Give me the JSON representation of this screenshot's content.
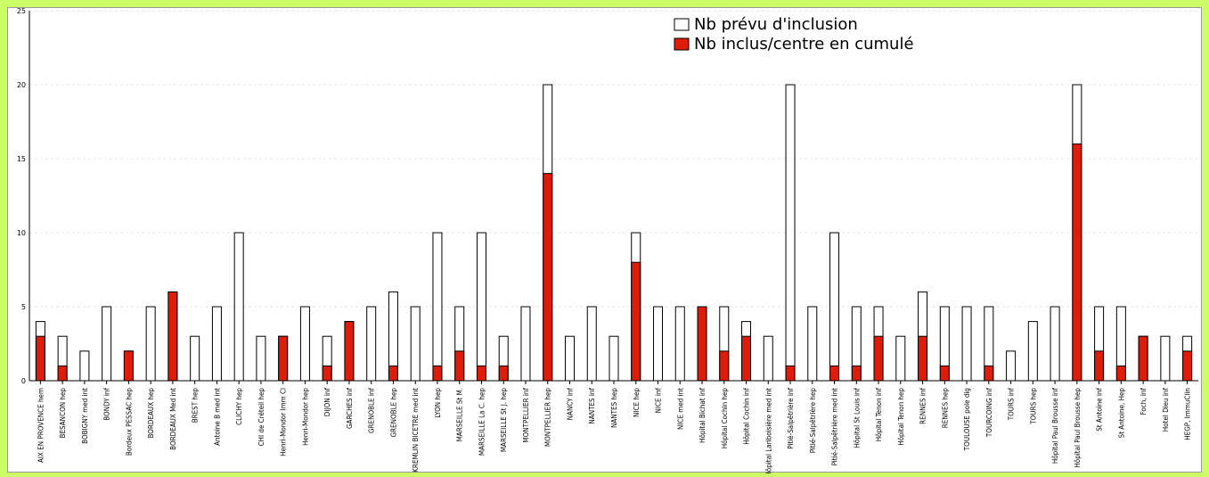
{
  "chart_data": {
    "type": "bar",
    "ylim": [
      0,
      25
    ],
    "yticks": [
      0,
      5,
      10,
      15,
      20,
      25
    ],
    "grid": true,
    "legend_position": "top-right",
    "categories": [
      "AIX EN PROVENCE hem",
      "BESANCON hep",
      "BOBIGNY med int",
      "BONDY inf",
      "Bordeux PESSAC hep",
      "BORDEAUX hep",
      "BORDEAUX Med int",
      "BREST hep",
      "Antoine B med int",
      "CLICHY hep",
      "CHI de Créteil hep",
      "Henri-Mondor Imm Cl",
      "Henri-Mondor hep",
      "DIJON inf",
      "GARCHES inf",
      "GRENOBLE inf",
      "GRENOBLE hep",
      "LE KREMLIN BICETRE med int",
      "LYON hep",
      "MARSEILLE St M.",
      "MARSEILLE La C. hep",
      "MARSEILLE St J. hep",
      "MONTPELLIER inf",
      "MONTPELLIER hep",
      "NANCY inf",
      "NANTES inf",
      "NANTES hep",
      "NICE hep",
      "NICE inf",
      "NICE med int",
      "Hôpital Bichat inf",
      "Hôpital Cochin hep",
      "Hôpital Cochin inf",
      "Hôpital Lariboisière med int",
      "Pitié-Salpêtrière inf",
      "Pitié-Salpêtrière hep",
      "Pitié-Salpêtrière med int",
      "Hôpital St Louis inf",
      "Hôpital Tenon inf",
      "Hôpital Tenon hep",
      "RENNES inf",
      "RENNES hep",
      "TOULOUSE pole dig",
      "TOURCOING inf",
      "TOURS inf",
      "TOURS hep",
      "Hôpital Paul Brousse inf",
      "Hôpital Paul Brousse hep",
      "St Antoine inf",
      "St Antoine, Hep",
      "Foch, inf",
      "Hotel Dieu inf",
      "HEGP, ImmuClin"
    ],
    "series": [
      {
        "name": "Nb prévu d'inclusion",
        "color": "#ffffff",
        "values": [
          4,
          3,
          2,
          5,
          2,
          5,
          6,
          3,
          5,
          10,
          3,
          3,
          5,
          3,
          4,
          5,
          6,
          5,
          10,
          5,
          10,
          3,
          5,
          20,
          3,
          5,
          3,
          10,
          5,
          5,
          5,
          5,
          4,
          3,
          20,
          5,
          10,
          5,
          5,
          3,
          6,
          5,
          5,
          5,
          2,
          4,
          5,
          20,
          5,
          5,
          3,
          3,
          3
        ]
      },
      {
        "name": "Nb inclus/centre en cumulé",
        "color": "#dd1c0a",
        "values": [
          3,
          1,
          0,
          0,
          2,
          0,
          6,
          0,
          0,
          0,
          0,
          3,
          0,
          1,
          4,
          0,
          1,
          0,
          1,
          2,
          1,
          1,
          0,
          14,
          0,
          0,
          0,
          8,
          0,
          0,
          5,
          2,
          3,
          0,
          1,
          0,
          1,
          1,
          3,
          0,
          3,
          1,
          0,
          1,
          0,
          0,
          0,
          16,
          2,
          1,
          3,
          0,
          2
        ]
      }
    ]
  }
}
